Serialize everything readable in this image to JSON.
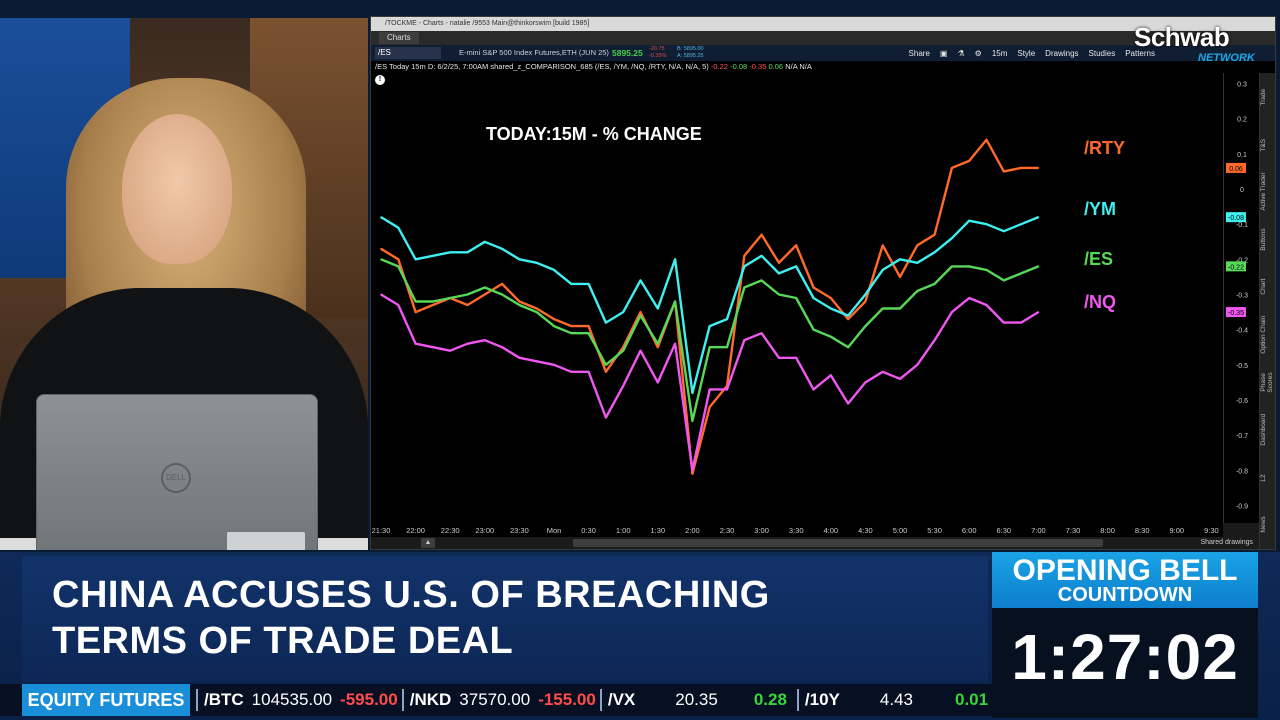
{
  "window": {
    "title_bar_text": "/TOCKME - Charts - natalie /9553 Main@thinkorswim [build 1985]",
    "tab_label": "Charts"
  },
  "toolbar": {
    "symbol": "/ES",
    "description": "E-mini S&P 500 Index Futures,ETH (JUN 25)",
    "price": "5895.25",
    "change": "-20.75",
    "change_pct": "-0.35%",
    "bid": "B: 5895.00",
    "ask": "A: 5895.25",
    "buttons": [
      "Share",
      "15m",
      "Style",
      "Drawings",
      "Studies",
      "Patterns"
    ]
  },
  "study_line": {
    "prefix": "/ES Today 15m",
    "detail": "D: 6/2/25, 7:00AM",
    "study": "shared_z_COMPARISON_685 (/ES, /YM, /NQ, /RTY, N/A, N/A, 5)",
    "values": [
      "-0.22",
      "-0.08",
      "-0.35",
      "0.06",
      "N/A",
      "N/A"
    ]
  },
  "side_tabs": [
    "Trade",
    "T&S",
    "Active Trader",
    "Buttons",
    "Chart",
    "Option Chain",
    "Phase Scores",
    "Dashboard",
    "L2",
    "News"
  ],
  "bottom_bar": {
    "shared_drawings": "Shared drawings"
  },
  "logo": {
    "brand": "Schwab",
    "network": "NETWORK"
  },
  "laptop_logo": "DELL",
  "chart_data": {
    "type": "line",
    "title": "TODAY:15M - % CHANGE",
    "x": [
      "21:30",
      "21:45",
      "22:00",
      "22:15",
      "22:30",
      "22:45",
      "23:00",
      "23:15",
      "23:30",
      "23:45",
      "Mon",
      "0:15",
      "0:30",
      "0:45",
      "1:00",
      "1:15",
      "1:30",
      "1:45",
      "2:00",
      "2:15",
      "2:30",
      "2:45",
      "3:00",
      "3:15",
      "3:30",
      "3:45",
      "4:00",
      "4:15",
      "4:30",
      "4:45",
      "5:00",
      "5:15",
      "5:30",
      "5:45",
      "6:00",
      "6:15",
      "6:30",
      "6:45",
      "7:00"
    ],
    "x_tick_labels": [
      "21:30",
      "22:00",
      "22:30",
      "23:00",
      "23:30",
      "Mon",
      "0:30",
      "1:00",
      "1:30",
      "2:00",
      "2:30",
      "3:00",
      "3:30",
      "4:00",
      "4:30",
      "5:00",
      "5:30",
      "6:00",
      "6:30",
      "7:00",
      "7:30",
      "8:00",
      "8:30",
      "9:00",
      "9:30"
    ],
    "y_tick_labels": [
      "0.3",
      "0.2",
      "0.1",
      "0",
      "-0.1",
      "-0.2",
      "-0.3",
      "-0.4",
      "-0.5",
      "-0.6",
      "-0.7",
      "-0.8",
      "-0.9"
    ],
    "ylim": [
      -0.95,
      0.33
    ],
    "series": [
      {
        "name": "/RTY",
        "color": "#ff6a2a",
        "values": [
          -0.17,
          -0.2,
          -0.35,
          -0.33,
          -0.31,
          -0.33,
          -0.3,
          -0.27,
          -0.32,
          -0.34,
          -0.37,
          -0.39,
          -0.39,
          -0.52,
          -0.45,
          -0.35,
          -0.45,
          -0.32,
          -0.81,
          -0.62,
          -0.56,
          -0.19,
          -0.13,
          -0.21,
          -0.16,
          -0.28,
          -0.31,
          -0.37,
          -0.32,
          -0.16,
          -0.25,
          -0.16,
          -0.13,
          0.06,
          0.08,
          0.14,
          0.05,
          0.06,
          0.06
        ]
      },
      {
        "name": "/YM",
        "color": "#3ff0f0",
        "values": [
          -0.08,
          -0.11,
          -0.2,
          -0.19,
          -0.18,
          -0.18,
          -0.15,
          -0.17,
          -0.2,
          -0.21,
          -0.23,
          -0.27,
          -0.27,
          -0.38,
          -0.35,
          -0.26,
          -0.34,
          -0.2,
          -0.58,
          -0.39,
          -0.37,
          -0.22,
          -0.19,
          -0.24,
          -0.22,
          -0.31,
          -0.34,
          -0.36,
          -0.3,
          -0.23,
          -0.2,
          -0.21,
          -0.18,
          -0.14,
          -0.09,
          -0.1,
          -0.12,
          -0.1,
          -0.08
        ]
      },
      {
        "name": "/ES",
        "color": "#57d957",
        "values": [
          -0.2,
          -0.22,
          -0.32,
          -0.32,
          -0.31,
          -0.3,
          -0.28,
          -0.3,
          -0.33,
          -0.35,
          -0.39,
          -0.41,
          -0.41,
          -0.5,
          -0.46,
          -0.36,
          -0.44,
          -0.32,
          -0.66,
          -0.45,
          -0.45,
          -0.28,
          -0.26,
          -0.3,
          -0.31,
          -0.4,
          -0.42,
          -0.45,
          -0.39,
          -0.34,
          -0.34,
          -0.29,
          -0.27,
          -0.22,
          -0.22,
          -0.23,
          -0.26,
          -0.24,
          -0.22
        ]
      },
      {
        "name": "/NQ",
        "color": "#f057f0",
        "values": [
          -0.3,
          -0.33,
          -0.44,
          -0.45,
          -0.46,
          -0.44,
          -0.43,
          -0.45,
          -0.48,
          -0.49,
          -0.5,
          -0.52,
          -0.52,
          -0.65,
          -0.56,
          -0.46,
          -0.55,
          -0.44,
          -0.8,
          -0.57,
          -0.57,
          -0.43,
          -0.41,
          -0.48,
          -0.48,
          -0.57,
          -0.53,
          -0.61,
          -0.55,
          -0.52,
          -0.54,
          -0.5,
          -0.43,
          -0.35,
          -0.31,
          -0.33,
          -0.38,
          -0.38,
          -0.35
        ]
      }
    ],
    "legend_position": "right",
    "last_value_tags": [
      "0.06",
      "-0.08",
      "-0.22",
      "-0.35"
    ]
  },
  "lower_third": {
    "headline_line1": "CHINA ACCUSES U.S. OF BREACHING",
    "headline_line2": "TERMS OF TRADE DEAL",
    "countdown_title1": "OPENING BELL",
    "countdown_title2": "COUNTDOWN",
    "countdown_time": "1:27:02"
  },
  "ticker": {
    "label": "EQUITY FUTURES",
    "items": [
      {
        "symbol": "/BTC",
        "value": "104535.00",
        "change": "-595.00",
        "direction": "down"
      },
      {
        "symbol": "/NKD",
        "value": "37570.00",
        "change": "-155.00",
        "direction": "down"
      },
      {
        "symbol": "/VX",
        "value": "20.35",
        "change": "0.28",
        "direction": "up"
      },
      {
        "symbol": "/10Y",
        "value": "4.43",
        "change": "0.01",
        "direction": "up"
      }
    ]
  }
}
